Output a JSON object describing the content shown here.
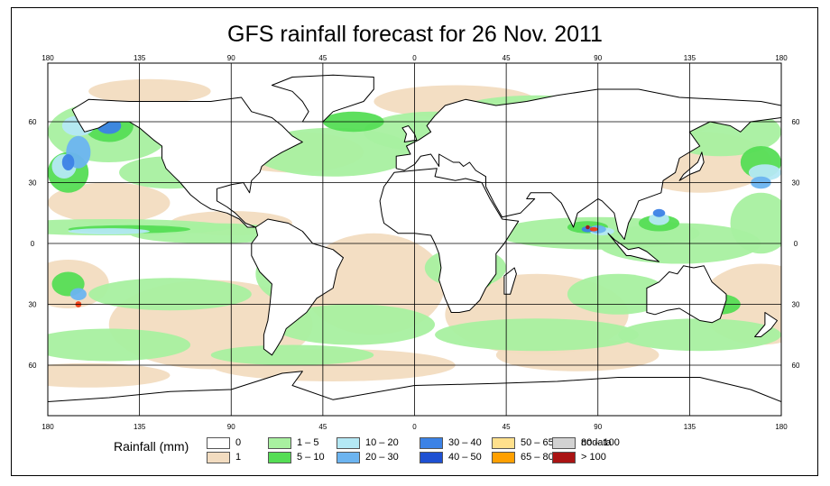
{
  "title": "GFS rainfall forecast for 26 Nov. 2011",
  "lon_ticks": [
    "180",
    "135",
    "90",
    "45",
    "0",
    "45",
    "90",
    "135",
    "180"
  ],
  "lat_ticks": [
    "60",
    "30",
    "0",
    "30",
    "60"
  ],
  "legend": {
    "title": "Rainfall (mm)",
    "items": [
      {
        "label": "0",
        "color": "#ffffff"
      },
      {
        "label": "1",
        "color": "#f2dcc0"
      },
      {
        "label": "1 – 5",
        "color": "#a8f0a0"
      },
      {
        "label": "5 – 10",
        "color": "#55dd55"
      },
      {
        "label": "10 – 20",
        "color": "#b4e8f4"
      },
      {
        "label": "20 – 30",
        "color": "#6cb4f0"
      },
      {
        "label": "30 – 40",
        "color": "#3c82e6"
      },
      {
        "label": "40 – 50",
        "color": "#1e50d2"
      },
      {
        "label": "50 – 65",
        "color": "#ffe08c"
      },
      {
        "label": "65 – 80",
        "color": "#ffa000"
      },
      {
        "label": "80 – 100",
        "color": "#f03c14"
      },
      {
        "label": "> 100",
        "color": "#aa1414"
      },
      {
        "label": "nodata",
        "color": "#d2d2d2"
      }
    ]
  },
  "colors": {
    "land": "#ffffff",
    "coast": "#000000",
    "grid": "#000000"
  }
}
